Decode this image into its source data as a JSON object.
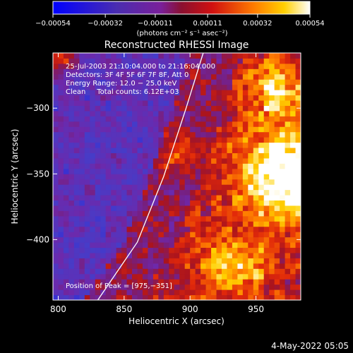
{
  "chart_data": {
    "type": "heatmap",
    "title": "Reconstructed RHESSI Image",
    "xlabel": "Heliocentric X (arcsec)",
    "ylabel": "Heliocentric Y (arcsec)",
    "xlim": [
      796,
      984
    ],
    "ylim": [
      -446,
      -258
    ],
    "x_ticks": [
      800,
      850,
      900,
      950
    ],
    "y_ticks": [
      -300,
      -350,
      -400
    ],
    "x_tick_labels": [
      "800",
      "850",
      "900",
      "950"
    ],
    "y_tick_labels": [
      "−300",
      "−350",
      "−400"
    ],
    "colorbar": {
      "ticks": [
        -0.00054,
        -0.00032,
        -0.00011,
        0.00011,
        0.00032,
        0.00054
      ],
      "tick_labels": [
        "−0.00054",
        "−0.00032",
        "−0.00011",
        "0.00011",
        "0.00032",
        "0.00054"
      ],
      "unit_label": "(photons cm⁻² s⁻¹ asec⁻²)"
    },
    "info_lines": [
      "25-Jul-2003 21:10:04.000 to 21:16:04.000",
      "Detectors: 3F 4F 5F 6F 7F 8F, Att 0",
      "Energy Range: 12.0 − 25.0 keV",
      "Clean     Total counts: 6.12E+03"
    ],
    "peak_label": "Position of Peak = [975,−351]",
    "peak_position": [
      975,
      -351
    ],
    "limb_curve": [
      [
        830,
        -446
      ],
      [
        860,
        -402
      ],
      [
        880,
        -352
      ],
      [
        897,
        -300
      ],
      [
        910,
        -258
      ]
    ],
    "grid_resolution_arcsec": 4
  },
  "footer": {
    "date": "4-May-2022 05:05"
  },
  "colors": {
    "background": "#000000",
    "text": "#ffffff"
  }
}
